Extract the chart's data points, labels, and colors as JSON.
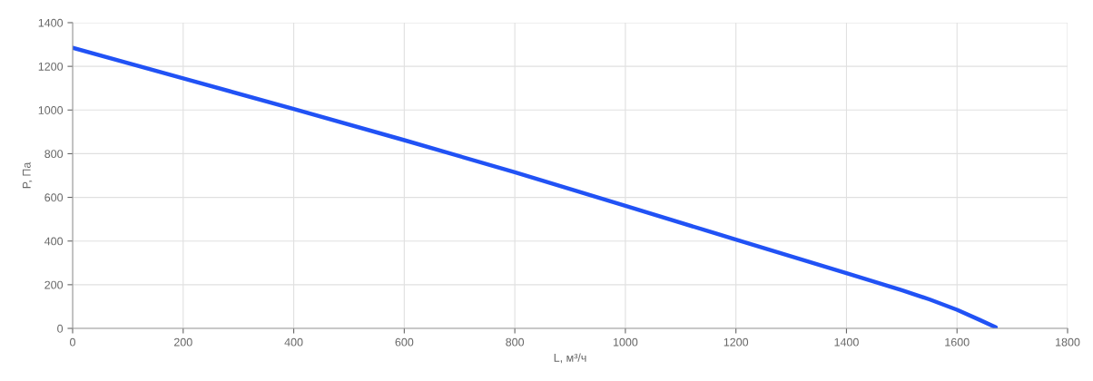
{
  "chart_data": {
    "type": "line",
    "xlabel": "L, м³/ч",
    "ylabel": "P, Па",
    "x": [
      0,
      200,
      400,
      600,
      800,
      1000,
      1200,
      1400,
      1500,
      1550,
      1600,
      1640,
      1670
    ],
    "series": [
      {
        "color": "#2152f5",
        "values": [
          1285,
          1145,
          1005,
          862,
          715,
          561,
          407,
          253,
          175,
          133,
          85,
          40,
          5
        ]
      }
    ],
    "xlim": [
      0,
      1800
    ],
    "xticks": [
      0,
      200,
      400,
      600,
      800,
      1000,
      1200,
      1400,
      1600,
      1800
    ],
    "ylim": [
      0,
      1400
    ],
    "yticks": [
      0,
      200,
      400,
      600,
      800,
      1000,
      1200,
      1400
    ],
    "grid": true,
    "marker": "none",
    "line_style": "solid",
    "legend": false
  }
}
